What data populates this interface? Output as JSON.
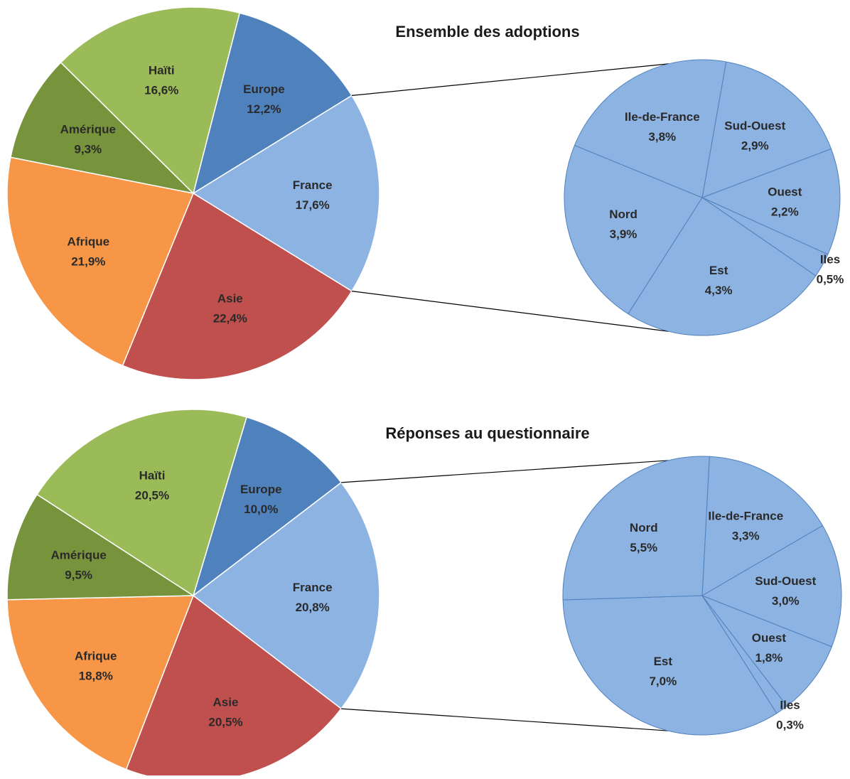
{
  "chart_data": [
    {
      "type": "pie",
      "title": "Ensemble des adoptions",
      "colors": {
        "Europe": "#4f81bd",
        "France": "#8db3e2",
        "Asie": "#c0504d",
        "Afrique": "#f79646",
        "Amérique": "#77933c",
        "Haïti": "#9bbb59"
      },
      "categories": [
        "Europe",
        "France",
        "Asie",
        "Afrique",
        "Amérique",
        "Haïti"
      ],
      "values": [
        12.2,
        17.6,
        22.4,
        21.9,
        9.3,
        16.6
      ],
      "value_labels": [
        "12,2%",
        "17,6%",
        "22,4%",
        "21,9%",
        "9,3%",
        "16,6%"
      ],
      "breakdown": {
        "of": "France",
        "color": "#8db3e2",
        "categories": [
          "Sud-Ouest",
          "Ouest",
          "Iles",
          "Est",
          "Nord",
          "Ile-de-France"
        ],
        "values": [
          2.9,
          2.2,
          0.5,
          4.3,
          3.9,
          3.8
        ],
        "value_labels": [
          "2,9%",
          "2,2%",
          "0,5%",
          "4,3%",
          "3,9%",
          "3,8%"
        ]
      }
    },
    {
      "type": "pie",
      "title": "Réponses au questionnaire",
      "colors": {
        "Europe": "#4f81bd",
        "France": "#8db3e2",
        "Asie": "#c0504d",
        "Afrique": "#f79646",
        "Amérique": "#77933c",
        "Haïti": "#9bbb59"
      },
      "categories": [
        "Europe",
        "France",
        "Asie",
        "Afrique",
        "Amérique",
        "Haïti"
      ],
      "values": [
        10.0,
        20.8,
        20.5,
        18.8,
        9.5,
        20.5
      ],
      "value_labels": [
        "10,0%",
        "20,8%",
        "20,5%",
        "18,8%",
        "9,5%",
        "20,5%"
      ],
      "breakdown": {
        "of": "France",
        "color": "#8db3e2",
        "categories": [
          "Ile-de-France",
          "Sud-Ouest",
          "Ouest",
          "Iles",
          "Est",
          "Nord"
        ],
        "values": [
          3.3,
          3.0,
          1.8,
          0.3,
          7.0,
          5.5
        ],
        "value_labels": [
          "3,3%",
          "3,0%",
          "1,8%",
          "0,3%",
          "7,0%",
          "5,5%"
        ]
      }
    }
  ]
}
